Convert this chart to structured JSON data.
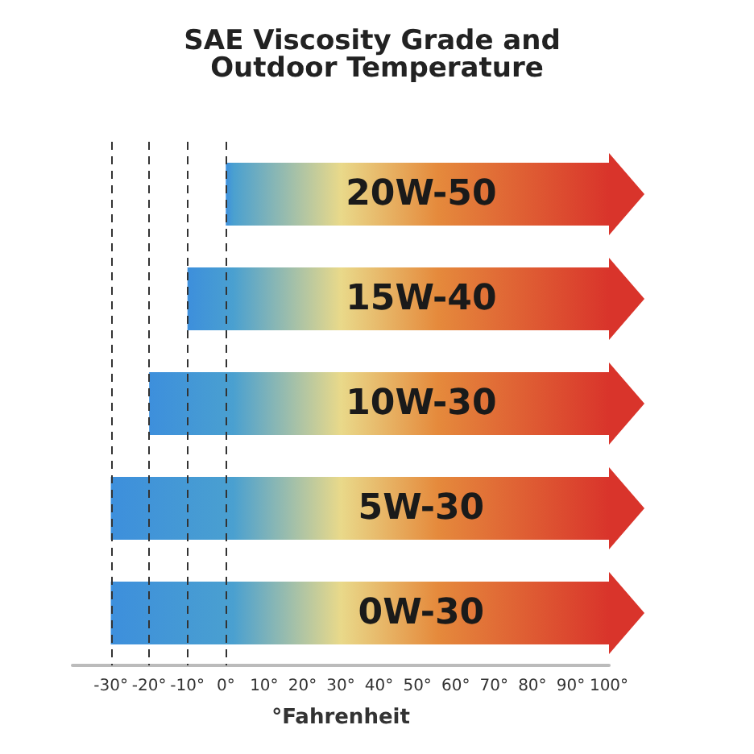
{
  "chart_data": {
    "type": "bar",
    "orientation": "horizontal",
    "title": "SAE Viscosity Grade and Outdoor Temperature",
    "xlabel": "°Fahrenheit",
    "categories": [
      "20W-50",
      "15W-40",
      "10W-30",
      "5W-30",
      "0W-30"
    ],
    "base": [
      0,
      -10,
      -20,
      -30,
      -30
    ],
    "values": [
      100,
      110,
      120,
      130,
      130
    ],
    "color": "#d9342b",
    "xlim": [
      -40,
      100
    ],
    "xticks": [
      {
        "value": -30,
        "label": "-30°"
      },
      {
        "value": -20,
        "label": "-20°"
      },
      {
        "value": -10,
        "label": "-10°"
      },
      {
        "value": 0,
        "label": "0°"
      },
      {
        "value": 10,
        "label": "10°"
      },
      {
        "value": 20,
        "label": "20°"
      },
      {
        "value": 30,
        "label": "30°"
      },
      {
        "value": 40,
        "label": "40°"
      },
      {
        "value": 50,
        "label": "50°"
      },
      {
        "value": 60,
        "label": "60°"
      },
      {
        "value": 70,
        "label": "70°"
      },
      {
        "value": 80,
        "label": "80°"
      },
      {
        "value": 90,
        "label": "90°"
      },
      {
        "value": 100,
        "label": "100°"
      }
    ],
    "ref_lines": [
      {
        "axis": "x",
        "value": -30,
        "line_style": "dashed"
      },
      {
        "axis": "x",
        "value": -20,
        "line_style": "dashed"
      },
      {
        "axis": "x",
        "value": -10,
        "line_style": "dashed"
      },
      {
        "axis": "x",
        "value": 0,
        "line_style": "dashed"
      }
    ],
    "grid": false
  }
}
